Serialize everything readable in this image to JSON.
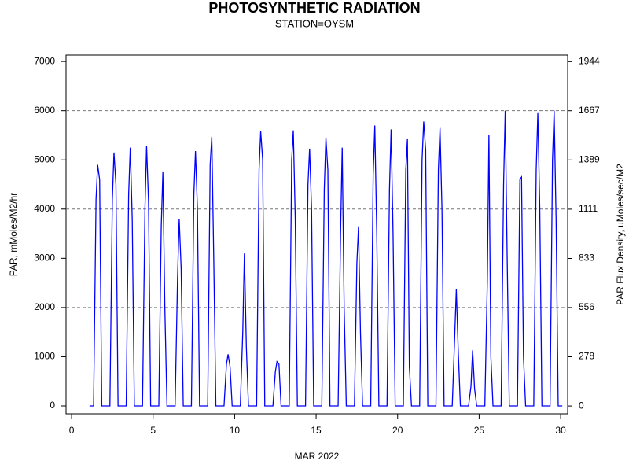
{
  "chart_data": {
    "type": "line",
    "title": "PHOTOSYNTHETIC RADIATION",
    "subtitle": "STATION=OYSM",
    "x_label": "MAR 2022",
    "y_label": "PAR, mMoles/M2/hr",
    "y2_label": "PAR Flux Density, uMoles/sec/M2",
    "color": "#0000ff",
    "x": [
      1.1,
      1.35,
      1.5,
      1.6,
      1.72,
      1.85,
      2.35,
      2.5,
      2.6,
      2.72,
      2.85,
      3.35,
      3.5,
      3.6,
      3.72,
      3.85,
      4.35,
      4.5,
      4.6,
      4.72,
      4.85,
      5.35,
      5.5,
      5.6,
      5.72,
      5.85,
      6.35,
      6.5,
      6.6,
      6.72,
      6.85,
      7.35,
      7.5,
      7.6,
      7.72,
      7.85,
      8.35,
      8.5,
      8.6,
      8.72,
      8.85,
      9.35,
      9.5,
      9.6,
      9.72,
      9.85,
      10.35,
      10.5,
      10.6,
      10.72,
      10.85,
      11.35,
      11.5,
      11.6,
      11.72,
      11.85,
      12.35,
      12.5,
      12.6,
      12.72,
      12.85,
      13.35,
      13.5,
      13.6,
      13.72,
      13.85,
      14.35,
      14.5,
      14.6,
      14.72,
      14.85,
      15.35,
      15.5,
      15.6,
      15.72,
      15.85,
      16.35,
      16.5,
      16.6,
      16.72,
      16.85,
      17.35,
      17.5,
      17.6,
      17.72,
      17.85,
      18.35,
      18.5,
      18.6,
      18.72,
      18.85,
      19.35,
      19.5,
      19.6,
      19.72,
      19.85,
      20.35,
      20.5,
      20.6,
      20.72,
      20.85,
      21.35,
      21.5,
      21.6,
      21.72,
      21.85,
      22.35,
      22.5,
      22.6,
      22.72,
      22.85,
      23.35,
      23.5,
      23.6,
      23.72,
      23.85,
      24.35,
      24.5,
      24.6,
      24.72,
      24.85,
      25.35,
      25.5,
      25.6,
      25.72,
      25.85,
      26.35,
      26.5,
      26.6,
      26.72,
      26.85,
      27.35,
      27.5,
      27.6,
      27.72,
      27.85,
      28.35,
      28.5,
      28.6,
      28.72,
      28.85,
      29.35,
      29.5,
      29.6,
      29.72,
      29.85,
      30.1
    ],
    "values": [
      0,
      0,
      4200,
      4900,
      4600,
      0,
      0,
      4200,
      5150,
      4500,
      0,
      0,
      4300,
      5250,
      3800,
      0,
      0,
      4000,
      5280,
      4150,
      0,
      0,
      3650,
      4750,
      2000,
      0,
      0,
      2600,
      3800,
      2800,
      0,
      0,
      4300,
      5180,
      4000,
      0,
      0,
      4900,
      5470,
      3000,
      0,
      0,
      850,
      1050,
      800,
      0,
      0,
      1500,
      3100,
      1200,
      0,
      0,
      4800,
      5580,
      5000,
      0,
      0,
      700,
      900,
      850,
      0,
      0,
      5000,
      5600,
      3800,
      0,
      0,
      4500,
      5230,
      4000,
      0,
      0,
      4400,
      5450,
      4800,
      0,
      0,
      3500,
      5250,
      2000,
      0,
      0,
      2900,
      3650,
      1500,
      0,
      0,
      4700,
      5700,
      3500,
      0,
      0,
      4400,
      5620,
      3500,
      0,
      0,
      4800,
      5420,
      800,
      0,
      0,
      5000,
      5780,
      5200,
      0,
      0,
      4800,
      5650,
      4000,
      0,
      0,
      1400,
      2370,
      1100,
      0,
      0,
      400,
      1130,
      350,
      0,
      0,
      2500,
      5500,
      1000,
      0,
      0,
      4500,
      6000,
      3000,
      0,
      0,
      4600,
      4650,
      1000,
      0,
      0,
      4800,
      5950,
      4000,
      0,
      0,
      5000,
      6000,
      3800,
      0,
      0
    ],
    "xlim": [
      -0.34,
      30.43
    ],
    "xticks": [
      0,
      5,
      10,
      15,
      20,
      25,
      30
    ],
    "ylim": [
      -160,
      7130
    ],
    "yticks": [
      0,
      1000,
      2000,
      3000,
      4000,
      5000,
      6000,
      7000
    ],
    "y2lim": [
      -44,
      1981
    ],
    "y2ticks": [
      0,
      278,
      556,
      833,
      1111,
      1389,
      1667,
      1944
    ],
    "gridlines": [
      2000,
      4000,
      6000
    ]
  }
}
